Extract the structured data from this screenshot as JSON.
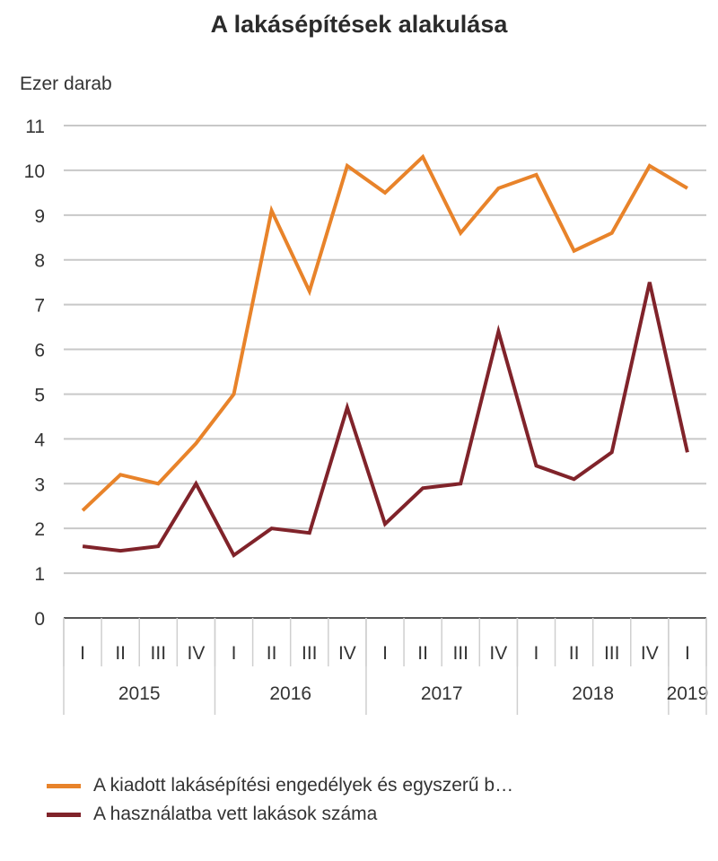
{
  "chart_data": {
    "type": "line",
    "title": "A lakásépítések alakulása",
    "ylabel": "Ezer darab",
    "xlabel": "",
    "ylim": [
      0,
      11
    ],
    "yticks": [
      "0",
      "1",
      "2",
      "3",
      "4",
      "5",
      "6",
      "7",
      "8",
      "9",
      "10",
      "11"
    ],
    "grid": true,
    "legend_position": "bottom-left",
    "quarters": [
      "I",
      "II",
      "III",
      "IV",
      "I",
      "II",
      "III",
      "IV",
      "I",
      "II",
      "III",
      "IV",
      "I",
      "II",
      "III",
      "IV",
      "I"
    ],
    "years": [
      {
        "label": "2015",
        "span": 4
      },
      {
        "label": "2016",
        "span": 4
      },
      {
        "label": "2017",
        "span": 4
      },
      {
        "label": "2018",
        "span": 4
      },
      {
        "label": "2019",
        "span": 1
      }
    ],
    "series": [
      {
        "name": "A kiadott lakásépítési engedélyek és egyszerű b…",
        "color": "#E8832A",
        "values": [
          2.4,
          3.2,
          3.0,
          3.9,
          5.0,
          9.1,
          7.3,
          10.1,
          9.5,
          10.3,
          8.6,
          9.6,
          9.9,
          8.2,
          8.6,
          10.1,
          9.6
        ]
      },
      {
        "name": "A használatba vett lakások száma",
        "color": "#80232A",
        "values": [
          1.6,
          1.5,
          1.6,
          3.0,
          1.4,
          2.0,
          1.9,
          4.7,
          2.1,
          2.9,
          3.0,
          6.4,
          3.4,
          3.1,
          3.7,
          7.5,
          3.7
        ]
      }
    ]
  }
}
